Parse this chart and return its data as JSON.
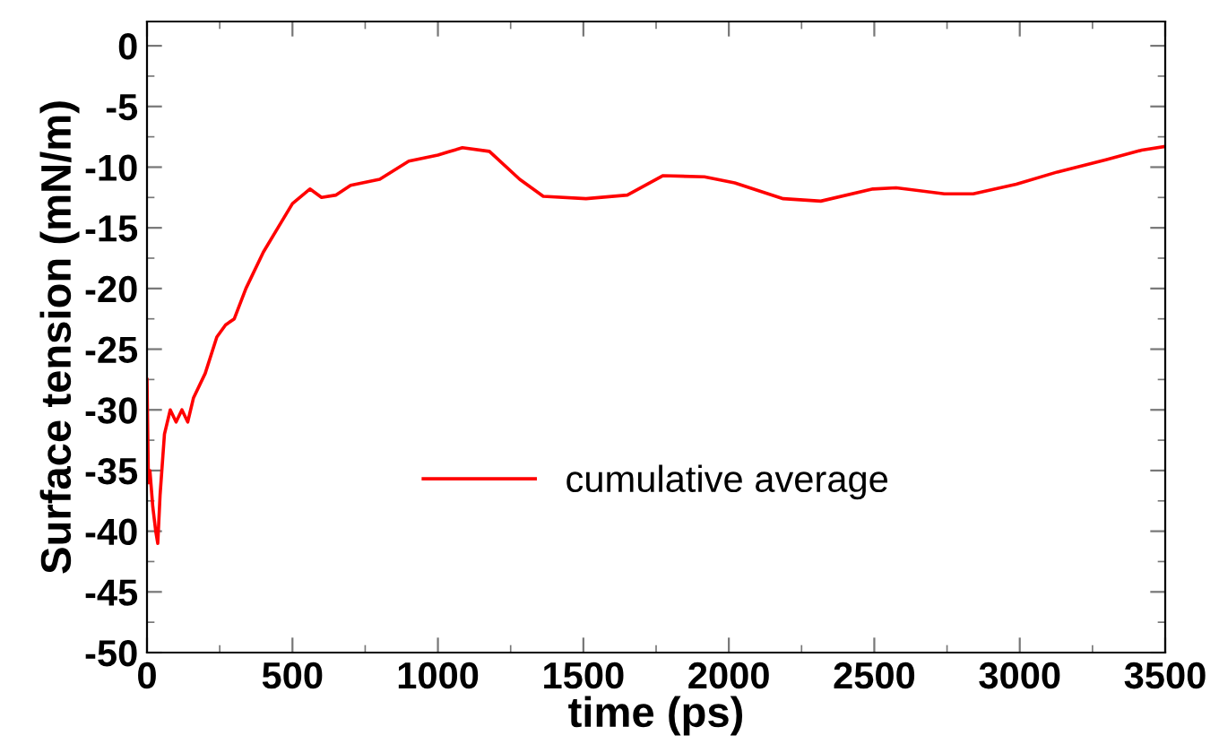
{
  "chart_data": {
    "type": "line",
    "xlabel": "time (ps)",
    "ylabel": "Surface tension (mN/m)",
    "xlim": [
      0,
      3500
    ],
    "ylim": [
      -50,
      2
    ],
    "xticks": [
      0,
      500,
      1000,
      1500,
      2000,
      2500,
      3000,
      3500
    ],
    "yticks": [
      -50,
      -45,
      -40,
      -35,
      -30,
      -25,
      -20,
      -15,
      -10,
      -5,
      0
    ],
    "grid": false,
    "legend": "center",
    "marker": "none",
    "line_style": "solid",
    "series": [
      {
        "name": "cumulative average",
        "color": "#ff0000",
        "x": [
          0,
          5,
          10,
          20,
          30,
          37,
          45,
          60,
          80,
          100,
          120,
          140,
          160,
          200,
          240,
          270,
          300,
          340,
          400,
          450,
          500,
          560,
          600,
          650,
          700,
          800,
          900,
          1000,
          1035,
          1084,
          1177,
          1281,
          1362,
          1509,
          1651,
          1774,
          1916,
          2020,
          2187,
          2316,
          2495,
          2575,
          2741,
          2840,
          2988,
          3129,
          3296,
          3419,
          3500
        ],
        "values": [
          -27.5,
          -36,
          -35,
          -38,
          -40,
          -41,
          -37,
          -32,
          -30,
          -31,
          -30,
          -31,
          -29,
          -27,
          -24,
          -23,
          -22.5,
          -20,
          -17,
          -15,
          -13,
          -11.8,
          -12.5,
          -12.3,
          -11.5,
          -11,
          -9.5,
          -9,
          -8.75,
          -8.4,
          -8.7,
          -11,
          -12.4,
          -12.6,
          -12.3,
          -10.7,
          -10.8,
          -11.3,
          -12.6,
          -12.8,
          -11.8,
          -11.7,
          -12.2,
          -12.2,
          -11.4,
          -10.4,
          -9.4,
          -8.6,
          -8.3
        ]
      }
    ]
  }
}
